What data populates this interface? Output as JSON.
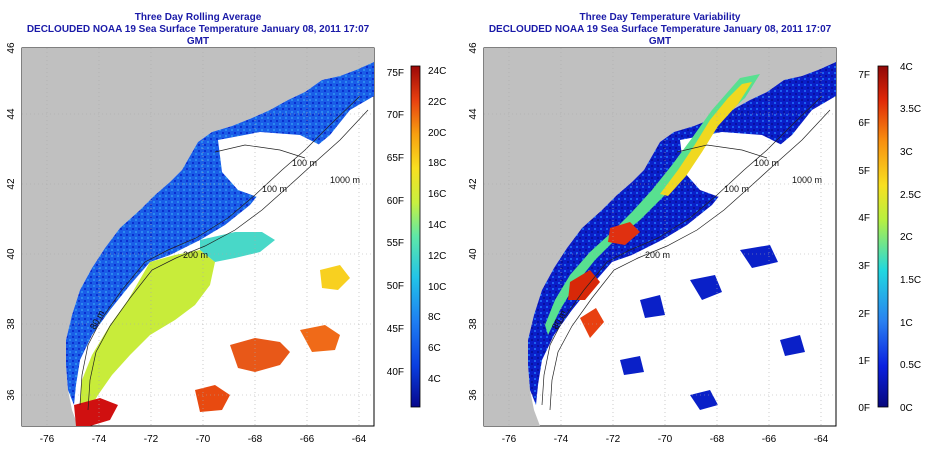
{
  "left_panel": {
    "title_line1": "Three Day Rolling Average",
    "title_line2": "DECLOUDED NOAA 19 Sea Surface Temperature January 08, 2011 17:07 GMT",
    "colorbar_c": [
      "24C",
      "22C",
      "20C",
      "18C",
      "16C",
      "14C",
      "12C",
      "10C",
      "8C",
      "6C",
      "4C"
    ],
    "colorbar_f": [
      "75F",
      "70F",
      "65F",
      "60F",
      "55F",
      "50F",
      "45F",
      "40F"
    ]
  },
  "right_panel": {
    "title_line1": "Three Day Temperature Variability",
    "title_line2": "DECLOUDED NOAA 19 Sea Surface Temperature January 08, 2011 17:07 GMT",
    "colorbar_c": [
      "4C",
      "3.5C",
      "3C",
      "2.5C",
      "2C",
      "1.5C",
      "1C",
      "0.5C",
      "0C"
    ],
    "colorbar_f": [
      "7F",
      "6F",
      "5F",
      "4F",
      "3F",
      "2F",
      "1F",
      "0F"
    ]
  },
  "axes": {
    "lon_ticks": [
      "-76",
      "-74",
      "-72",
      "-70",
      "-68",
      "-66",
      "-64"
    ],
    "lat_ticks": [
      "36",
      "38",
      "40",
      "42",
      "44",
      "46"
    ]
  },
  "contour_labels": {
    "c100_top": "100 m",
    "c1000": "1000 m",
    "c100_mid": "100 m",
    "c200": "200 m",
    "c80": "80 m"
  },
  "colors": {
    "title": "#1a1aa8",
    "land": "#c0c0c0",
    "no_data": "#ffffff"
  }
}
